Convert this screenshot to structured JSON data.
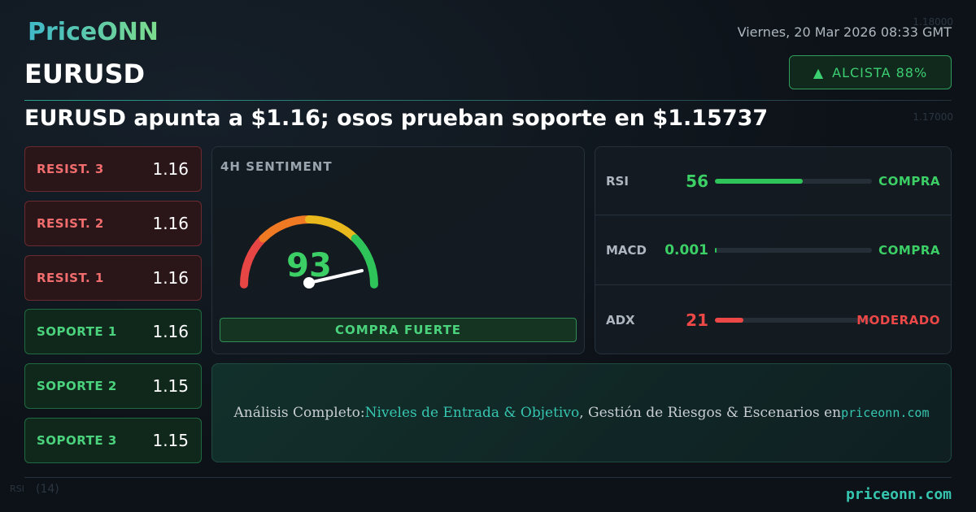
{
  "brand": "PriceONN",
  "date": "Viernes, 20 Mar 2026 08:33 GMT",
  "symbol": "EURUSD",
  "badge": {
    "arrow": "▲",
    "label": "ALCISTA 88%"
  },
  "headline": "EURUSD apunta a $1.16; osos prueban soporte en $1.15737",
  "levels": [
    {
      "label": "RESIST. 3",
      "value": 1.16
    },
    {
      "label": "RESIST. 2",
      "value": 1.16
    },
    {
      "label": "RESIST. 1",
      "value": 1.16
    },
    {
      "label": "SOPORTE 1",
      "value": 1.16
    },
    {
      "label": "SOPORTE 2",
      "value": 1.15
    },
    {
      "label": "SOPORTE 3",
      "value": 1.15
    }
  ],
  "sentiment": {
    "title": "4H SENTIMENT",
    "score": 93,
    "verdict": "COMPRA FUERTE"
  },
  "indicators": [
    {
      "name": "RSI",
      "value": 56,
      "signal": "COMPRA"
    },
    {
      "name": "MACD",
      "value": 0.001,
      "signal": "COMPRA"
    },
    {
      "name": "ADX",
      "value": 21,
      "signal": "MODERADO"
    }
  ],
  "banner": {
    "parts": [
      "Análisis Completo:",
      "Niveles de Entrada & Objetivo",
      ", Gestión de Riesgos & Escenarios en",
      "priceonn.com"
    ]
  },
  "footer": "priceonn.com",
  "background": {
    "price_labels": [
      "1.18000",
      "1.17000"
    ],
    "indicator_label": "RSI",
    "indicator_period": "(14)"
  }
}
